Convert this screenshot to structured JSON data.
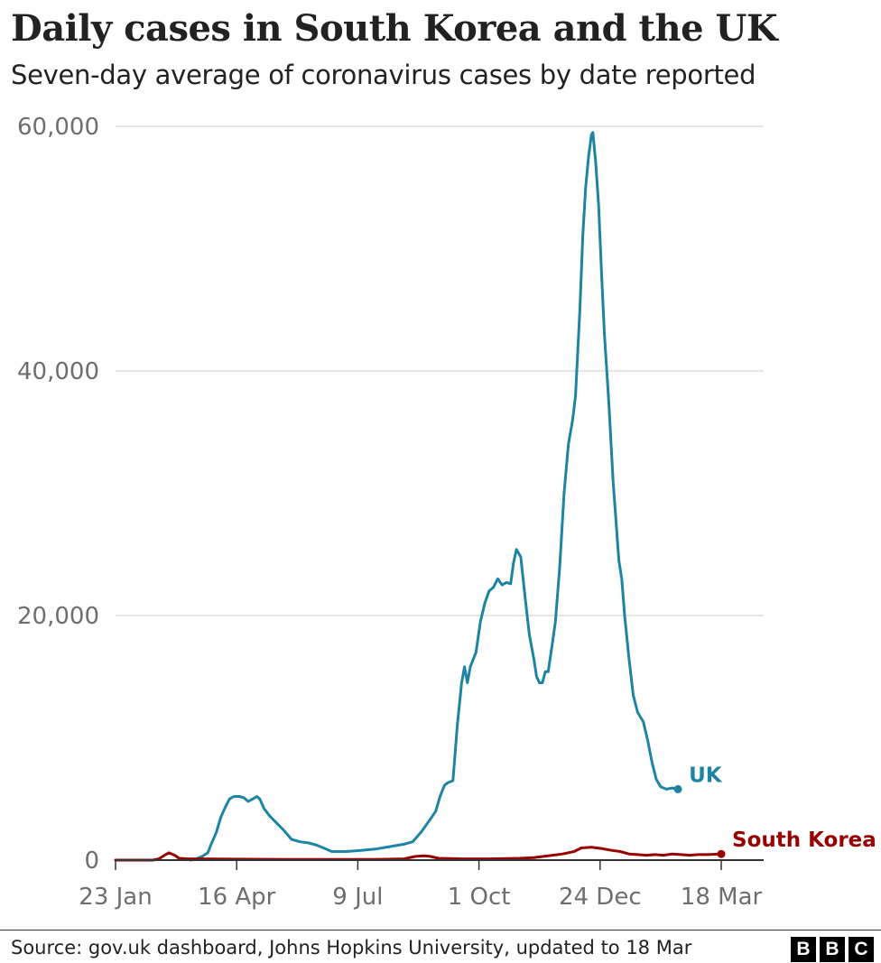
{
  "header": {
    "title": "Daily cases in South Korea and the UK",
    "subtitle": "Seven-day average of coronavirus cases by date reported"
  },
  "footer": {
    "source": "Source: gov.uk dashboard, Johns Hopkins University, updated to 18 Mar",
    "logo_letters": [
      "B",
      "B",
      "C"
    ]
  },
  "chart_data": {
    "type": "line",
    "title": "Daily cases in South Korea and the UK",
    "subtitle": "Seven-day average of coronavirus cases by date reported",
    "xlabel": "",
    "ylabel": "",
    "x_start": "23 Jan",
    "x_end": "18 Mar",
    "x_ticks": [
      {
        "label": "23 Jan",
        "day": 0
      },
      {
        "label": "16 Apr",
        "day": 84
      },
      {
        "label": "9 Jul",
        "day": 168
      },
      {
        "label": "1 Oct",
        "day": 252
      },
      {
        "label": "24 Dec",
        "day": 336
      },
      {
        "label": "18 Mar",
        "day": 420
      }
    ],
    "y_ticks": [
      {
        "label": "0",
        "value": 0
      },
      {
        "label": "20,000",
        "value": 20000
      },
      {
        "label": "40,000",
        "value": 40000
      },
      {
        "label": "60,000",
        "value": 60000
      }
    ],
    "ylim": [
      0,
      60000
    ],
    "xlim": [
      0,
      420
    ],
    "grid": "horizontal",
    "series": [
      {
        "name": "UK",
        "color": "#1d84a3",
        "end_marker": true,
        "points": [
          [
            52,
            0
          ],
          [
            56,
            100
          ],
          [
            60,
            300
          ],
          [
            64,
            600
          ],
          [
            66,
            1200
          ],
          [
            70,
            2300
          ],
          [
            73,
            3500
          ],
          [
            76,
            4300
          ],
          [
            79,
            5000
          ],
          [
            82,
            5200
          ],
          [
            86,
            5200
          ],
          [
            89,
            5100
          ],
          [
            92,
            4800
          ],
          [
            95,
            5000
          ],
          [
            98,
            5200
          ],
          [
            100,
            5000
          ],
          [
            103,
            4200
          ],
          [
            107,
            3600
          ],
          [
            112,
            3000
          ],
          [
            117,
            2400
          ],
          [
            122,
            1700
          ],
          [
            128,
            1500
          ],
          [
            134,
            1400
          ],
          [
            140,
            1200
          ],
          [
            146,
            900
          ],
          [
            150,
            700
          ],
          [
            160,
            700
          ],
          [
            170,
            800
          ],
          [
            180,
            900
          ],
          [
            190,
            1100
          ],
          [
            200,
            1300
          ],
          [
            206,
            1500
          ],
          [
            212,
            2300
          ],
          [
            218,
            3300
          ],
          [
            222,
            4000
          ],
          [
            225,
            5200
          ],
          [
            228,
            6100
          ],
          [
            230,
            6300
          ],
          [
            234,
            6500
          ],
          [
            237,
            11000
          ],
          [
            240,
            14500
          ],
          [
            242,
            15800
          ],
          [
            244,
            14500
          ],
          [
            246,
            15800
          ],
          [
            250,
            17000
          ],
          [
            253,
            19500
          ],
          [
            256,
            21000
          ],
          [
            259,
            22000
          ],
          [
            262,
            22300
          ],
          [
            265,
            23000
          ],
          [
            268,
            22500
          ],
          [
            271,
            22700
          ],
          [
            274,
            22600
          ],
          [
            276,
            24300
          ],
          [
            278,
            25400
          ],
          [
            281,
            24800
          ],
          [
            284,
            21500
          ],
          [
            287,
            18400
          ],
          [
            290,
            16500
          ],
          [
            292,
            15000
          ],
          [
            294,
            14500
          ],
          [
            296,
            14500
          ],
          [
            298,
            15400
          ],
          [
            300,
            15400
          ],
          [
            303,
            17800
          ],
          [
            305,
            19500
          ],
          [
            308,
            24000
          ],
          [
            311,
            30000
          ],
          [
            314,
            34000
          ],
          [
            317,
            36000
          ],
          [
            319,
            38000
          ],
          [
            322,
            45000
          ],
          [
            324,
            51000
          ],
          [
            326,
            55000
          ],
          [
            328,
            57500
          ],
          [
            330,
            59300
          ],
          [
            331,
            59500
          ],
          [
            333,
            57000
          ],
          [
            335,
            53500
          ],
          [
            337,
            48000
          ],
          [
            339,
            43000
          ],
          [
            342,
            37500
          ],
          [
            345,
            31000
          ],
          [
            349,
            24500
          ],
          [
            351,
            23000
          ],
          [
            353,
            20000
          ],
          [
            356,
            16500
          ],
          [
            359,
            13500
          ],
          [
            362,
            12100
          ],
          [
            366,
            11300
          ],
          [
            369,
            9800
          ],
          [
            372,
            8000
          ],
          [
            375,
            6600
          ],
          [
            378,
            6000
          ],
          [
            382,
            5800
          ],
          [
            386,
            5900
          ],
          [
            390,
            5800
          ]
        ]
      },
      {
        "name": "South Korea",
        "color": "#990000",
        "end_marker": true,
        "points": [
          [
            0,
            0
          ],
          [
            26,
            0
          ],
          [
            30,
            100
          ],
          [
            34,
            400
          ],
          [
            37,
            600
          ],
          [
            41,
            400
          ],
          [
            44,
            150
          ],
          [
            50,
            100
          ],
          [
            60,
            100
          ],
          [
            80,
            80
          ],
          [
            120,
            50
          ],
          [
            150,
            60
          ],
          [
            180,
            50
          ],
          [
            200,
            100
          ],
          [
            208,
            300
          ],
          [
            214,
            350
          ],
          [
            218,
            300
          ],
          [
            224,
            150
          ],
          [
            240,
            100
          ],
          [
            260,
            100
          ],
          [
            280,
            150
          ],
          [
            290,
            200
          ],
          [
            300,
            350
          ],
          [
            310,
            500
          ],
          [
            318,
            700
          ],
          [
            323,
            1000
          ],
          [
            330,
            1050
          ],
          [
            337,
            950
          ],
          [
            344,
            800
          ],
          [
            350,
            700
          ],
          [
            356,
            500
          ],
          [
            362,
            450
          ],
          [
            368,
            400
          ],
          [
            374,
            450
          ],
          [
            380,
            400
          ],
          [
            386,
            500
          ],
          [
            392,
            450
          ],
          [
            398,
            400
          ],
          [
            404,
            450
          ],
          [
            410,
            450
          ],
          [
            416,
            480
          ],
          [
            420,
            500
          ]
        ]
      }
    ]
  }
}
